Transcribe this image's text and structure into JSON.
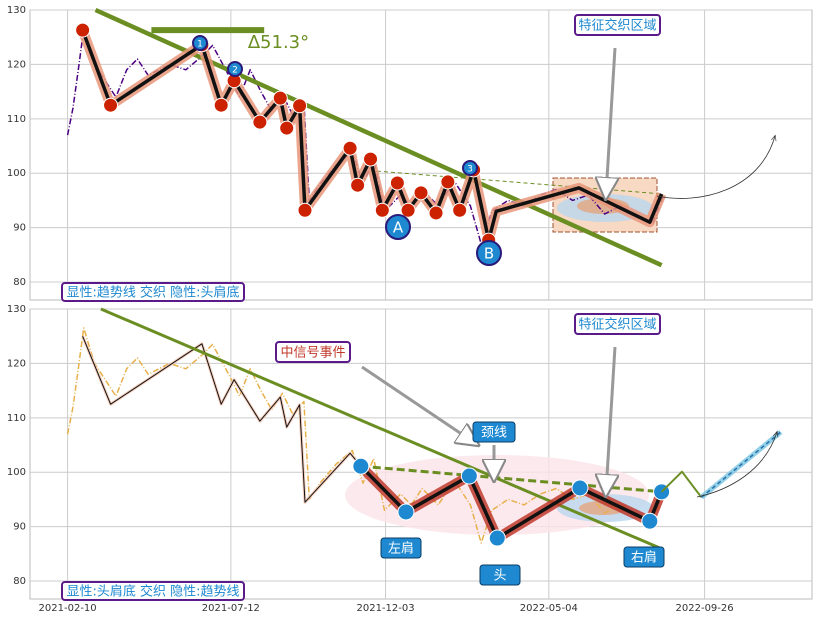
{
  "chart_data": [
    {
      "type": "line",
      "xlim": [
        "2021-01-06",
        "2023-01-04"
      ],
      "ylim": [
        76.7,
        130
      ],
      "yticks": [
        80,
        90,
        100,
        110,
        120,
        130
      ],
      "grid": true,
      "angle_label": "∆51.3°",
      "region_label": "特征交织区域",
      "caption": "显性:趋势线 交织 隐性:头肩底",
      "point_labels": [
        "1",
        "2",
        "3",
        "A",
        "B"
      ],
      "series": [
        {
          "color": "#4b0082",
          "style": "dashdot",
          "x": [
            "2021-02-10",
            "2021-02-15",
            "2021-02-20",
            "2021-02-25",
            "2021-03-07",
            "2021-03-17",
            "2021-03-27",
            "2021-04-06",
            "2021-04-16",
            "2021-04-26",
            "2021-05-06",
            "2021-05-16",
            "2021-05-31",
            "2021-06-15",
            "2021-06-25",
            "2021-07-10",
            "2021-07-20",
            "2021-07-30",
            "2021-08-09",
            "2021-08-19",
            "2021-08-29",
            "2021-09-08",
            "2021-09-18",
            "2021-09-23",
            "2021-10-03",
            "2021-10-18",
            "2021-11-02",
            "2021-11-12",
            "2021-11-22",
            "2021-12-02",
            "2021-12-17",
            "2021-12-27",
            "2022-01-06",
            "2022-01-21",
            "2022-02-05",
            "2022-02-20",
            "2022-03-02",
            "2022-03-12",
            "2022-03-27",
            "2022-04-11",
            "2022-04-26",
            "2022-05-11",
            "2022-05-26",
            "2022-06-10",
            "2022-06-25",
            "2022-07-10",
            "2022-07-25",
            "2022-08-09",
            "2022-08-19"
          ],
          "values": [
            107,
            112,
            119,
            126.5,
            120,
            117,
            114,
            119,
            121,
            118,
            119,
            120,
            119,
            121.5,
            123.5,
            118,
            114,
            119,
            115,
            111.5,
            114.5,
            110.5,
            113,
            95,
            98,
            101.5,
            104,
            98,
            102.5,
            93,
            96,
            94,
            97,
            94,
            98.5,
            94,
            87,
            93,
            95,
            94,
            96,
            97,
            95,
            96,
            92.5,
            94,
            92,
            91,
            96
          ]
        },
        {
          "color": "#6b8e23",
          "style": "trend",
          "x": [
            "2021-03-08",
            "2022-08-17"
          ],
          "values": [
            130,
            83.1
          ]
        },
        {
          "color": "#6b8e23",
          "style": "flat",
          "x": [
            "2021-04-29",
            "2021-08-12"
          ],
          "values": [
            126.3,
            126.3
          ]
        },
        {
          "color": "#6b8e23",
          "style": "dash",
          "x": [
            "2021-11-12",
            "2022-08-17"
          ],
          "values": [
            100.6,
            96.2
          ]
        },
        {
          "color": "#111111",
          "glow": "#e9967a",
          "style": "zigzag",
          "x": [
            "2021-02-24",
            "2021-03-22",
            "2021-06-15",
            "2021-07-03",
            "2021-07-15",
            "2021-08-08",
            "2021-08-27",
            "2021-09-02",
            "2021-09-14",
            "2021-09-19",
            "2021-10-31",
            "2021-11-07",
            "2021-11-19",
            "2021-11-30",
            "2021-12-14",
            "2021-12-24",
            "2022-01-05",
            "2022-01-19",
            "2022-01-30",
            "2022-02-10",
            "2022-02-23",
            "2022-03-09",
            "2022-03-16",
            "2022-06-01",
            "2022-08-06",
            "2022-08-17"
          ],
          "values": [
            126.3,
            112.5,
            123.6,
            112.5,
            117,
            109.4,
            113.8,
            108.3,
            112.4,
            93.2,
            104.6,
            97.8,
            102.6,
            93.2,
            98.2,
            93.2,
            96.4,
            92.7,
            98.4,
            93.2,
            100.6,
            87.7,
            93,
            97.3,
            91,
            96.2
          ],
          "marker_color": "#cc2200"
        }
      ]
    },
    {
      "type": "line",
      "xlim": [
        "2021-01-06",
        "2023-01-04"
      ],
      "ylim": [
        76.7,
        130
      ],
      "yticks": [
        80,
        90,
        100,
        110,
        120,
        130
      ],
      "grid": true,
      "xticks": [
        "2021-02-10",
        "2021-07-12",
        "2021-12-03",
        "2022-05-04",
        "2022-09-26"
      ],
      "region_label": "特征交织区域",
      "caption": "显性:头肩底 交织 隐性:趋势线",
      "signal_label": "中信号事件",
      "neckline_label": "颈线",
      "pattern_labels": [
        "左肩",
        "头",
        "右肩"
      ],
      "series": [
        {
          "color": "#e8b04a",
          "style": "dashdot",
          "x": [
            "2021-02-10",
            "2021-02-15",
            "2021-02-20",
            "2021-02-25",
            "2021-03-07",
            "2021-03-17",
            "2021-03-27",
            "2021-04-06",
            "2021-04-16",
            "2021-04-26",
            "2021-05-06",
            "2021-05-16",
            "2021-05-31",
            "2021-06-15",
            "2021-06-25",
            "2021-07-10",
            "2021-07-20",
            "2021-07-30",
            "2021-08-09",
            "2021-08-19",
            "2021-08-29",
            "2021-09-08",
            "2021-09-18",
            "2021-09-23",
            "2021-10-03",
            "2021-10-18",
            "2021-11-02",
            "2021-11-12",
            "2021-11-22",
            "2021-12-02",
            "2021-12-17",
            "2021-12-27",
            "2022-01-06",
            "2022-01-21",
            "2022-02-05",
            "2022-02-20",
            "2022-03-02",
            "2022-03-12",
            "2022-03-27",
            "2022-04-11",
            "2022-04-26",
            "2022-05-11",
            "2022-05-26",
            "2022-06-10",
            "2022-06-25",
            "2022-07-10",
            "2022-07-25",
            "2022-08-09",
            "2022-08-19"
          ],
          "values": [
            107,
            112,
            119,
            126.5,
            120,
            117,
            114,
            119,
            121,
            118,
            119,
            120,
            119,
            121.5,
            123.5,
            118,
            114,
            119,
            115,
            111.5,
            114.5,
            110.5,
            113,
            95,
            98,
            101.5,
            104,
            98,
            102.5,
            93,
            96,
            94,
            97,
            94,
            98.5,
            94,
            87,
            93,
            95,
            94,
            96,
            97,
            95,
            96,
            92.5,
            94,
            92,
            91,
            96
          ]
        },
        {
          "color": "#111111",
          "glow": "#f2c4b0",
          "style": "thin",
          "x": [
            "2021-02-24",
            "2021-03-22",
            "2021-06-15",
            "2021-07-03",
            "2021-07-15",
            "2021-08-08",
            "2021-08-27",
            "2021-09-02",
            "2021-09-14",
            "2021-09-19",
            "2021-10-31",
            "2021-11-10"
          ],
          "values": [
            125,
            112.5,
            123.6,
            112.5,
            117,
            109.4,
            113.8,
            108.3,
            112.4,
            94.5,
            103.5,
            101.1
          ]
        },
        {
          "color": "#6b8e23",
          "style": "trend",
          "x": [
            "2021-03-13",
            "2022-08-15"
          ],
          "values": [
            130,
            86.1
          ]
        },
        {
          "color": "#6b8e23",
          "style": "dash",
          "x": [
            "2021-11-10",
            "2022-08-17"
          ],
          "values": [
            101.1,
            96.4
          ]
        },
        {
          "color": "#111111",
          "glow": "#c0392b",
          "style": "zigzag",
          "x": [
            "2021-11-10",
            "2021-12-22",
            "2022-02-19",
            "2022-03-17",
            "2022-06-02",
            "2022-08-06",
            "2022-08-17"
          ],
          "values": [
            101.1,
            92.7,
            99.3,
            87.9,
            97.1,
            91,
            96.4
          ],
          "marker_color": "#1e88d0"
        },
        {
          "color": "#6b8e23",
          "style": "flat",
          "x": [
            "2022-08-17",
            "2022-09-05",
            "2022-09-23"
          ],
          "values": [
            96.4,
            100.1,
            95.4
          ]
        },
        {
          "color": "#2a6fa8",
          "glow": "#7ec8e3",
          "style": "proj",
          "x": [
            "2022-09-23",
            "2022-12-06"
          ],
          "values": [
            95.4,
            107.4
          ]
        }
      ]
    }
  ]
}
